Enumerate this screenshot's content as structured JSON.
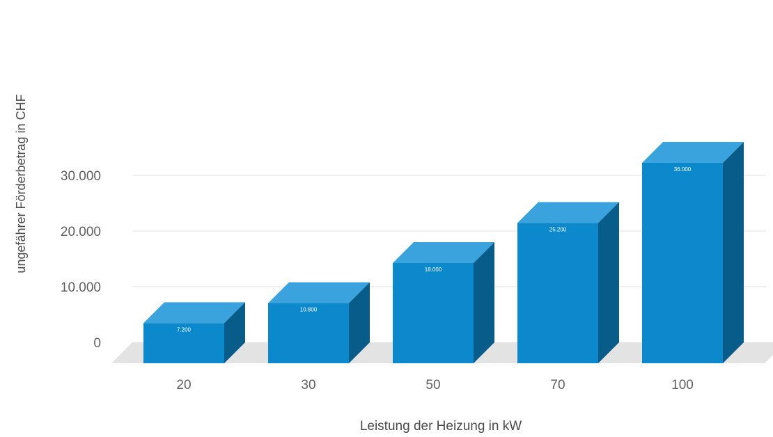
{
  "chart_data": {
    "type": "bar",
    "style": "3d",
    "categories": [
      "20",
      "30",
      "50",
      "70",
      "100"
    ],
    "values": [
      7200,
      10800,
      18000,
      25200,
      36000
    ],
    "value_labels": [
      "7.200",
      "10.800",
      "18.000",
      "25.200",
      "36.000"
    ],
    "xlabel": "Leistung der Heizung in kW",
    "ylabel": "ungefährer Förderbetrag in CHF",
    "yticks": [
      {
        "value": 0,
        "label": "0"
      },
      {
        "value": 10000,
        "label": "10.000"
      },
      {
        "value": 20000,
        "label": "20.000"
      },
      {
        "value": 30000,
        "label": "30.000"
      }
    ],
    "ylim": [
      0,
      36000
    ],
    "grid": true,
    "legend": "none",
    "colors": {
      "bar_front": "#0b89cc",
      "bar_top": "#3aa3de",
      "bar_side": "#075c8a",
      "floor": "#e3e3e3",
      "grid": "#e0e0e0",
      "value_label": "#ffffff"
    }
  }
}
